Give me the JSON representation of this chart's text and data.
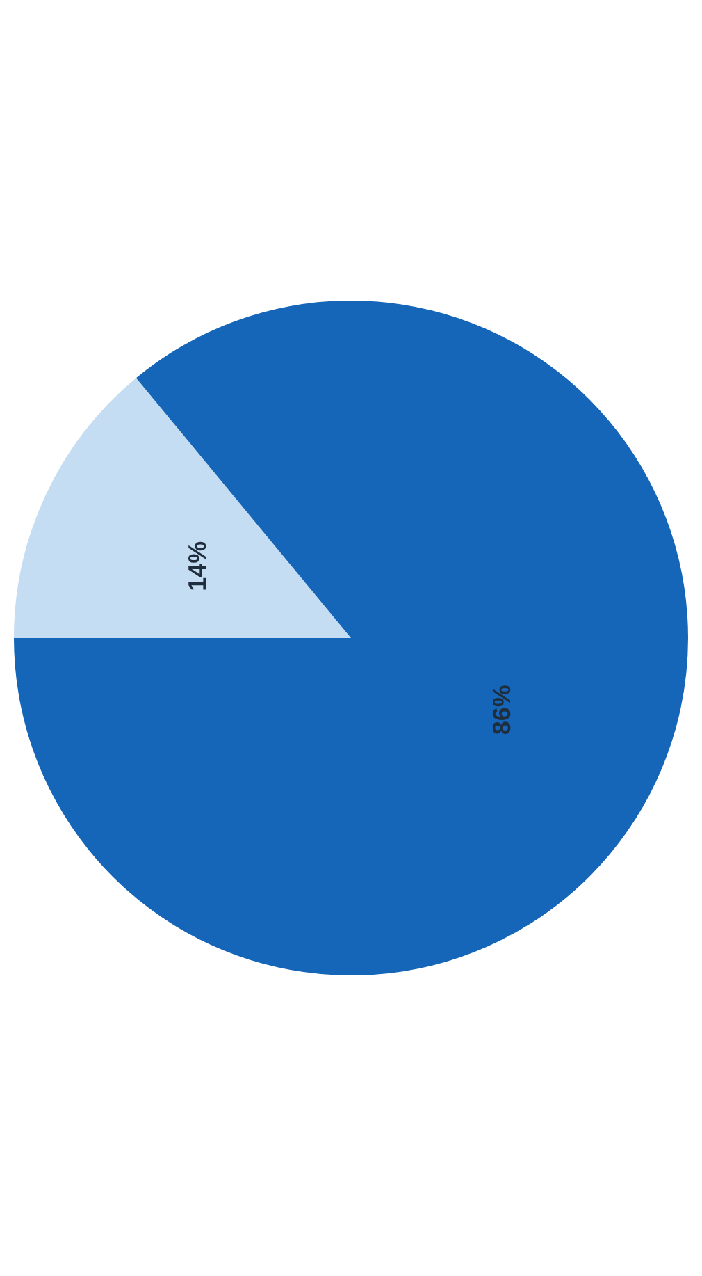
{
  "chart_data": {
    "type": "pie",
    "categories": [
      null,
      null
    ],
    "values": [
      14,
      86
    ],
    "colors": [
      "#c5ddf2",
      "#1565b8"
    ],
    "value_labels": [
      "14%",
      "86%"
    ]
  }
}
